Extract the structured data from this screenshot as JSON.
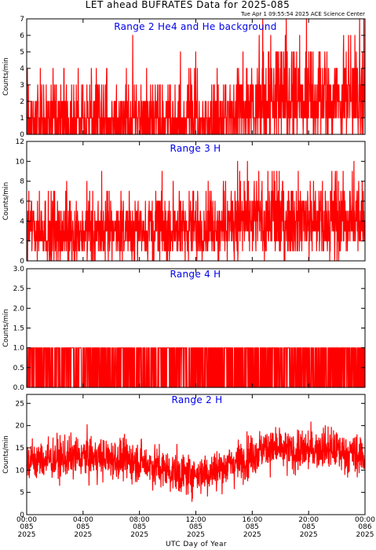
{
  "header": {
    "title": "LET ahead BUFRATES Data for 2025-085",
    "timestamp": "Tue Apr  1 09:55:54 2025 ACE Science Center"
  },
  "x_axis": {
    "label": "UTC Day of Year",
    "ticks": [
      {
        "hour": 0,
        "time": "00:00",
        "day": "085",
        "year": "2025"
      },
      {
        "hour": 4,
        "time": "04:00",
        "day": "085",
        "year": "2025"
      },
      {
        "hour": 8,
        "time": "08:00",
        "day": "085",
        "year": "2025"
      },
      {
        "hour": 12,
        "time": "12:00",
        "day": "085",
        "year": "2025"
      },
      {
        "hour": 16,
        "time": "16:00",
        "day": "085",
        "year": "2025"
      },
      {
        "hour": 20,
        "time": "20:00",
        "day": "085",
        "year": "2025"
      },
      {
        "hour": 24,
        "time": "00:00",
        "day": "086",
        "year": "2025"
      }
    ]
  },
  "colors": {
    "trace": "#ff0000",
    "panel_title": "#0000ee",
    "axes": "#000000"
  },
  "chart_data": [
    {
      "type": "line",
      "title": "Range 2 He4 and He background",
      "ylabel": "Counts/min",
      "ylim": [
        0,
        7
      ],
      "yticks": [
        0,
        1,
        2,
        3,
        4,
        5,
        6,
        7
      ],
      "xlim_hours": [
        0,
        24
      ],
      "series": [
        {
          "level_hours": [
            0,
            14,
            15.5,
            17,
            20,
            22,
            24
          ],
          "level_values": [
            1.0,
            1.0,
            1.6,
            2.2,
            2.0,
            2.3,
            2.2
          ],
          "typical_max": 7
        }
      ]
    },
    {
      "type": "line",
      "title": "Range 3 H",
      "ylabel": "Counts/min",
      "ylim": [
        0,
        12
      ],
      "yticks": [
        0,
        2,
        4,
        6,
        8,
        10,
        12
      ],
      "xlim_hours": [
        0,
        24
      ],
      "series": [
        {
          "level_hours": [
            0,
            6,
            12,
            15,
            18,
            21,
            24
          ],
          "level_values": [
            3.0,
            3.0,
            3.4,
            4.0,
            4.3,
            4.0,
            4.2
          ],
          "typical_max": 12
        }
      ]
    },
    {
      "type": "line",
      "title": "Range 4 H",
      "ylabel": "Counts/min",
      "ylim": [
        0,
        3
      ],
      "yticks": [
        0.0,
        0.5,
        1.0,
        1.5,
        2.0,
        2.5,
        3.0
      ],
      "xlim_hours": [
        0,
        24
      ],
      "series": [
        {
          "level_hours": [
            0,
            24
          ],
          "level_values": [
            0.5,
            0.5
          ],
          "typical_max": 2.8
        }
      ]
    },
    {
      "type": "line",
      "title": "Range 2 H",
      "ylabel": "Counts/min",
      "ylim": [
        0,
        27
      ],
      "yticks": [
        0,
        5,
        10,
        15,
        20,
        25
      ],
      "xlim_hours": [
        0,
        24
      ],
      "series": [
        {
          "level_hours": [
            0,
            4,
            8,
            11,
            13,
            15,
            17,
            19,
            21,
            24
          ],
          "level_values": [
            12,
            13,
            12,
            9,
            9.5,
            12,
            15,
            14,
            15,
            13
          ],
          "typical_max": 27
        }
      ]
    }
  ]
}
